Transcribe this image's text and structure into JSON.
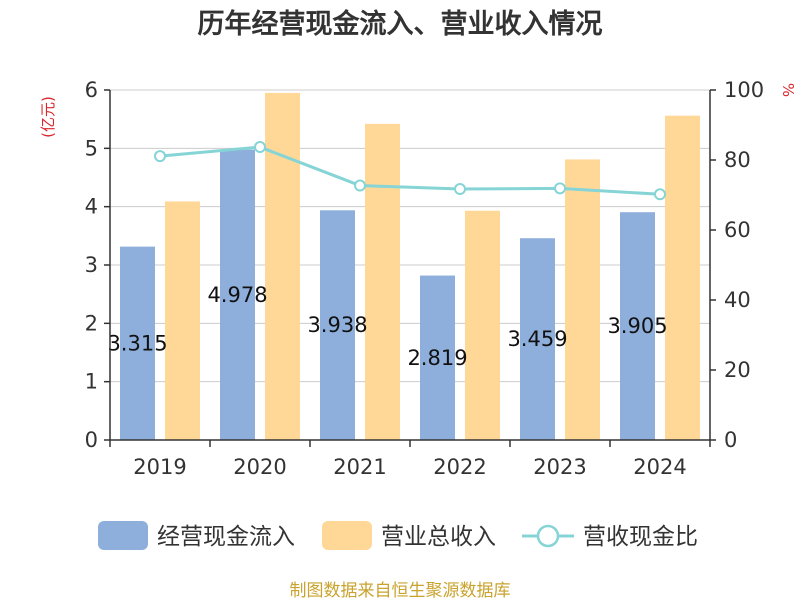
{
  "chart_data": {
    "type": "bar",
    "title": "历年经营现金流入、营业收入情况",
    "ylabel": "(亿元)",
    "y2label": "%",
    "categories": [
      "2019",
      "2020",
      "2021",
      "2022",
      "2023",
      "2024"
    ],
    "ylim": [
      0,
      6
    ],
    "yticks": [
      0,
      1,
      2,
      3,
      4,
      5,
      6
    ],
    "y2lim": [
      0,
      100
    ],
    "y2ticks": [
      0,
      20,
      40,
      60,
      80,
      100
    ],
    "grid": true,
    "legend": "bottom",
    "series": [
      {
        "name": "经营现金流入",
        "type": "bar",
        "axis": "left",
        "color": "#8eaedc",
        "show_labels": true,
        "values": [
          3.315,
          4.978,
          3.938,
          2.819,
          3.459,
          3.905
        ]
      },
      {
        "name": "营业总收入",
        "type": "bar",
        "axis": "left",
        "color": "#ffd898",
        "show_labels": false,
        "values": [
          4.09,
          5.95,
          5.42,
          3.93,
          4.81,
          5.56
        ]
      },
      {
        "name": "营收现金比",
        "type": "line",
        "axis": "right",
        "color": "#86d4d6",
        "show_labels": false,
        "values": [
          81.1,
          83.7,
          72.7,
          71.7,
          71.9,
          70.2
        ]
      }
    ]
  },
  "source_note": "制图数据来自恒生聚源数据库",
  "colors": {
    "title": "#333333",
    "axis_name": "#d9262b",
    "source_note": "#c9a32e",
    "grid": "#cccccc",
    "axis": "#333333"
  }
}
